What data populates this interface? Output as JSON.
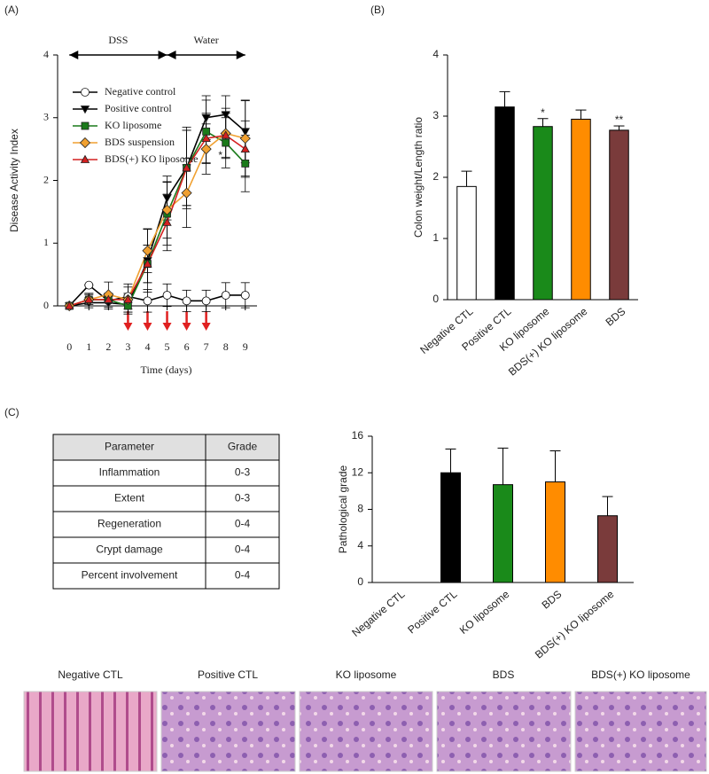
{
  "panels": [
    "(A)",
    "(B)",
    "(C)"
  ],
  "chart_data": [
    {
      "type": "line",
      "xlabel": "Time (days)",
      "ylabel": "Disease Activity Index",
      "x": [
        0,
        1,
        2,
        3,
        4,
        5,
        6,
        7,
        8,
        9
      ],
      "xlim": [
        -0.6,
        9.6
      ],
      "xticks": [
        0,
        1,
        2,
        3,
        4,
        5,
        6,
        7,
        8,
        9
      ],
      "ylim": [
        0,
        4
      ],
      "yticks": [
        0,
        1,
        2,
        3,
        4
      ],
      "phases": [
        {
          "label": "DSS",
          "from": 0,
          "to": 5
        },
        {
          "label": "Water",
          "from": 5,
          "to": 9
        }
      ],
      "arrows": [
        3,
        4,
        5,
        6,
        7
      ],
      "arrow_color": "#e02020",
      "annotations": [
        {
          "text": "*",
          "x": 8,
          "y": 2.45,
          "color": "#d02020"
        }
      ],
      "series": [
        {
          "name": "Negative control",
          "color": "#000000",
          "marker": "circle",
          "marker_fill": "#ffffff",
          "values": [
            0,
            0.33,
            0.08,
            0.15,
            0.08,
            0.17,
            0.08,
            0.08,
            0.17,
            0.17
          ],
          "errors": [
            0,
            0,
            0.08,
            0.2,
            0.18,
            0.18,
            0.17,
            0.17,
            0.2,
            0.2
          ]
        },
        {
          "name": "Positive control",
          "color": "#000000",
          "marker": "triangle-down",
          "marker_fill": "#000000",
          "values": [
            0,
            0.05,
            0.05,
            0.02,
            0.72,
            1.72,
            2.2,
            3.0,
            3.05,
            2.78
          ],
          "errors": [
            0,
            0.08,
            0.1,
            0.15,
            0.5,
            0.35,
            0.65,
            0.35,
            0.3,
            0.5
          ]
        },
        {
          "name": "KO liposome",
          "color": "#1a7a1a",
          "marker": "square",
          "marker_fill": "#1a7a1a",
          "values": [
            0,
            0.1,
            0.1,
            0.0,
            0.67,
            1.47,
            2.2,
            2.78,
            2.6,
            2.27
          ],
          "errors": [
            0,
            0.1,
            0.1,
            0.1,
            0.3,
            0.5,
            0.6,
            0.5,
            0.4,
            0.45
          ]
        },
        {
          "name": "BDS suspension",
          "color": "#f0a030",
          "marker": "diamond",
          "marker_fill": "#f0a030",
          "values": [
            0,
            0.1,
            0.18,
            0.1,
            0.88,
            1.53,
            1.8,
            2.5,
            2.75,
            2.67
          ],
          "errors": [
            0,
            0.1,
            0.2,
            0.2,
            0.35,
            0.45,
            0.55,
            0.4,
            0.4,
            0.6
          ]
        },
        {
          "name": "BDS(+) KO liposome",
          "color": "#d42020",
          "marker": "triangle-up",
          "marker_fill": "#d42020",
          "values": [
            0,
            0.1,
            0.1,
            0.1,
            0.67,
            1.33,
            2.2,
            2.67,
            2.72,
            2.5
          ],
          "errors": [
            0,
            0.08,
            0.1,
            0.1,
            0.3,
            0.45,
            0.6,
            0.4,
            0.35,
            0.45
          ]
        }
      ]
    },
    {
      "type": "bar",
      "ylabel": "Colon weight/Length ratio",
      "categories": [
        "Negative CTL",
        "Positive CTL",
        "KO liposome",
        "BDS(+) KO liposome",
        "BDS"
      ],
      "values": [
        1.85,
        3.15,
        2.83,
        2.95,
        2.77
      ],
      "errors": [
        0.25,
        0.25,
        0.13,
        0.15,
        0.07
      ],
      "colors": [
        "#ffffff",
        "#000000",
        "#1a8a1a",
        "#ff8c00",
        "#7a3b3b"
      ],
      "ylim": [
        0,
        4
      ],
      "yticks": [
        0,
        1,
        2,
        3,
        4
      ],
      "significance": [
        {
          "index": 2,
          "text": "*"
        },
        {
          "index": 4,
          "text": "**"
        }
      ],
      "significance_color": "#d02020"
    },
    {
      "type": "bar",
      "ylabel": "Pathological grade",
      "categories": [
        "Negative CTL",
        "Positive CTL",
        "KO liposome",
        "BDS",
        "BDS(+) KO liposome"
      ],
      "values": [
        0,
        12,
        10.7,
        11,
        7.3
      ],
      "errors": [
        0,
        2.6,
        4,
        3.4,
        2.1
      ],
      "colors": [
        "#ffffff",
        "#000000",
        "#1a8a1a",
        "#ff8c00",
        "#7a3b3b"
      ],
      "ylim": [
        0,
        16
      ],
      "yticks": [
        0,
        4,
        8,
        12,
        16
      ]
    }
  ],
  "table": {
    "header": [
      "Parameter",
      "Grade"
    ],
    "rows": [
      [
        "Inflammation",
        "0-3"
      ],
      [
        "Extent",
        "0-3"
      ],
      [
        "Regeneration",
        "0-4"
      ],
      [
        "Crypt damage",
        "0-4"
      ],
      [
        "Percent involvement",
        "0-4"
      ]
    ]
  },
  "histology": {
    "labels": [
      "Negative CTL",
      "Positive CTL",
      "KO liposome",
      "BDS",
      "BDS(+) KO liposome"
    ]
  }
}
